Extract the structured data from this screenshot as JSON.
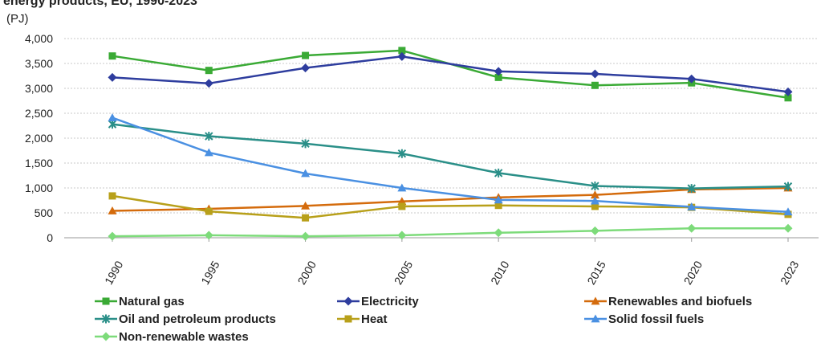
{
  "page": {
    "title_fragment": "energy products, EU, 1990-2023",
    "unit": "(PJ)"
  },
  "chart_data": {
    "type": "line",
    "title": "",
    "unit_label": "(PJ)",
    "xlabel": "",
    "ylabel": "",
    "categories": [
      "1990",
      "1995",
      "2000",
      "2005",
      "2010",
      "2015",
      "2020",
      "2023"
    ],
    "y_ticks": [
      "0",
      "500",
      "1,000",
      "1,500",
      "2,000",
      "2,500",
      "3,000",
      "3,500",
      "4,000"
    ],
    "ylim": [
      0,
      4000
    ],
    "grid": "horizontal dashed",
    "legend_position": "bottom",
    "series": [
      {
        "name": "Natural gas",
        "color": "#3aaa35",
        "marker": "square",
        "values": [
          3650,
          3360,
          3660,
          3760,
          3220,
          3060,
          3110,
          2810
        ]
      },
      {
        "name": "Electricity",
        "color": "#2e3d9e",
        "marker": "diamond",
        "values": [
          3220,
          3100,
          3410,
          3640,
          3340,
          3290,
          3190,
          2930
        ]
      },
      {
        "name": "Renewables and biofuels",
        "color": "#d46b0c",
        "marker": "triangle",
        "values": [
          540,
          580,
          640,
          730,
          810,
          860,
          970,
          1000
        ]
      },
      {
        "name": "Oil and petroleum products",
        "color": "#2a8f88",
        "marker": "star",
        "values": [
          2280,
          2040,
          1890,
          1690,
          1300,
          1040,
          990,
          1030
        ]
      },
      {
        "name": "Heat",
        "color": "#b8a01a",
        "marker": "square",
        "values": [
          840,
          530,
          400,
          630,
          650,
          630,
          610,
          470
        ]
      },
      {
        "name": "Solid fossil fuels",
        "color": "#4a90e2",
        "marker": "triangle",
        "values": [
          2410,
          1710,
          1290,
          1000,
          760,
          740,
          620,
          520
        ]
      },
      {
        "name": "Non-renewable wastes",
        "color": "#7ddb7a",
        "marker": "diamond",
        "values": [
          30,
          50,
          30,
          50,
          100,
          140,
          190,
          190
        ]
      }
    ]
  }
}
